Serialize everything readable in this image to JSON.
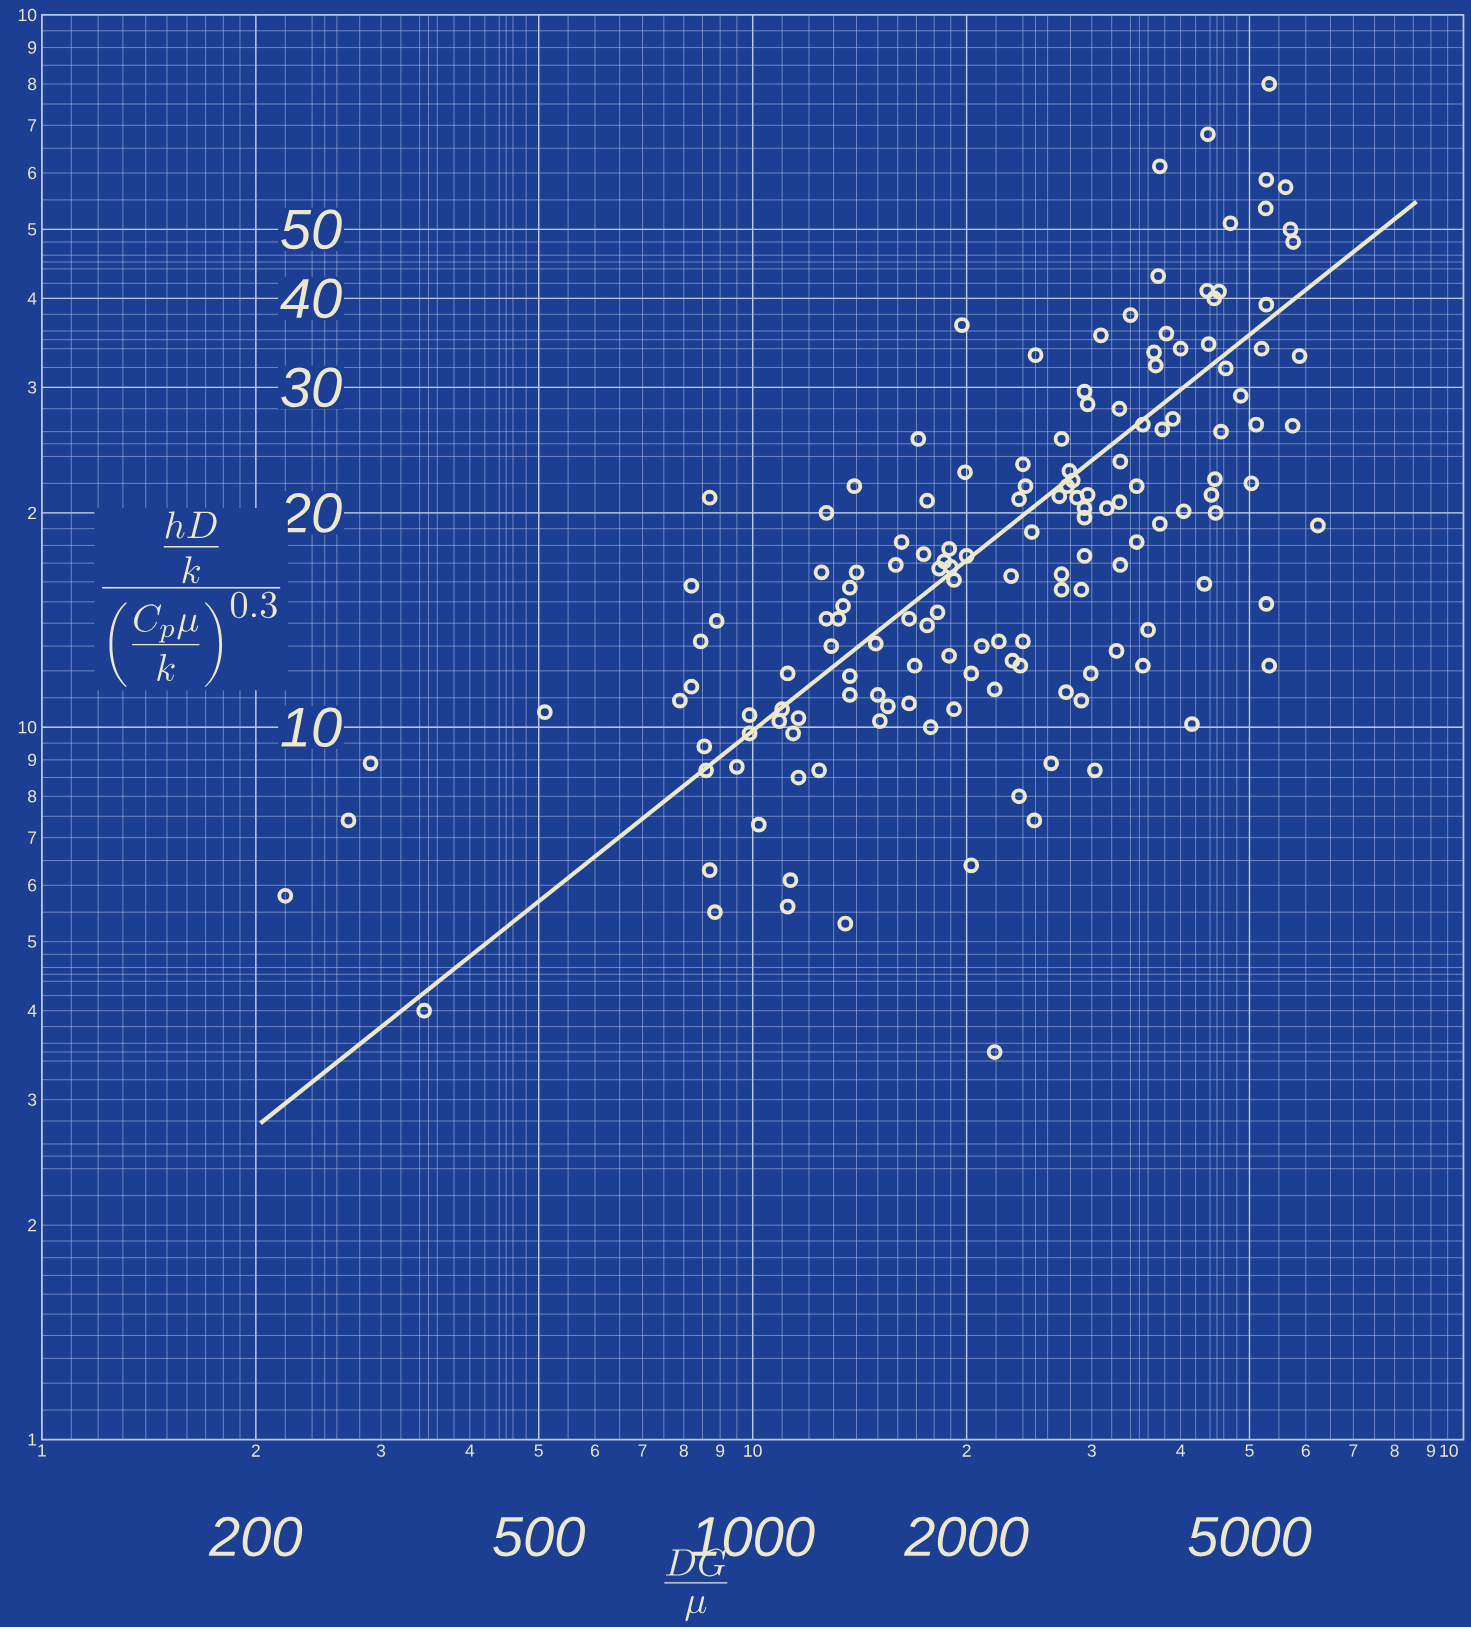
{
  "chart_data": {
    "type": "scatter",
    "xlabel": "\\frac{DG}{\\mu}",
    "ylabel": "\\frac{\\;\\frac{hD}{k}\\;}{\\left(\\frac{C_p\\mu}{k}\\right)^{0.3}}",
    "log": "xy",
    "grid": true,
    "marker": "circle",
    "xlim": [
      100,
      10000
    ],
    "ylim": [
      1,
      100
    ],
    "xticks": [
      200,
      500,
      1000,
      2000,
      5000
    ],
    "yticks": [
      10,
      20,
      30,
      40,
      50
    ],
    "annotations": [
      "1",
      "2",
      "3",
      "4",
      "5",
      "6",
      "7",
      "8",
      "9",
      "10",
      "2",
      "3",
      "4",
      "5",
      "6",
      "7",
      "8",
      "9",
      "10",
      "1",
      "2",
      "3",
      "4",
      "5",
      "6",
      "7",
      "8",
      "9",
      "10",
      "2",
      "3",
      "4",
      "5",
      "6",
      "7",
      "8",
      "9",
      "10"
    ],
    "series": [
      {
        "type": "scatter",
        "color": "#ece8cf",
        "x": [
          220,
          270,
          290,
          345,
          510,
          790,
          820,
          820,
          845,
          870,
          890,
          855,
          860,
          870,
          885,
          950,
          990,
          990,
          1020,
          1090,
          1100,
          1120,
          1140,
          1160,
          1160,
          1130,
          1120,
          1240,
          1270,
          1250,
          1270,
          1290,
          1320,
          1340,
          1370,
          1400,
          1390,
          1370,
          1370,
          1350,
          1490,
          1500,
          1510,
          1550,
          1590,
          1620,
          1660,
          1690,
          1660,
          1710,
          1740,
          1760,
          1760,
          1780,
          1820,
          1830,
          1860,
          1890,
          1890,
          1900,
          1920,
          1920,
          1970,
          1990,
          2000,
          2030,
          2030,
          2100,
          2190,
          2220,
          2190,
          2310,
          2320,
          2380,
          2370,
          2400,
          2420,
          2370,
          2400,
          2470,
          2500,
          2490,
          2630,
          2720,
          2700,
          2720,
          2720,
          2760,
          2790,
          2770,
          2820,
          2860,
          2900,
          2900,
          2930,
          2960,
          2930,
          2930,
          2930,
          2960,
          2990,
          3030,
          3090,
          3150,
          3250,
          3280,
          3280,
          3290,
          3290,
          3400,
          3470,
          3470,
          3540,
          3540,
          3600,
          3670,
          3690,
          3720,
          3740,
          3740,
          3770,
          3820,
          3900,
          4000,
          4040,
          4150,
          4320,
          4370,
          4360,
          4380,
          4420,
          4460,
          4470,
          4480,
          4530,
          4560,
          4630,
          4700,
          4860,
          5030,
          5110,
          5200,
          5270,
          5280,
          5280,
          5280,
          5330,
          5330,
          5620,
          5710,
          5750,
          5760,
          5880,
          6240
        ],
        "values": [
          5.8,
          7.4,
          8.9,
          4.0,
          10.5,
          10.9,
          11.4,
          15.8,
          13.2,
          21,
          14.1,
          9.4,
          8.7,
          6.3,
          5.5,
          8.8,
          10.4,
          9.8,
          7.3,
          10.2,
          10.6,
          11.9,
          9.8,
          10.3,
          8.5,
          6.1,
          5.6,
          8.7,
          20,
          16.5,
          14.2,
          13.0,
          14.2,
          14.8,
          15.7,
          16.5,
          21.8,
          11.8,
          11.1,
          5.3,
          13.1,
          11.1,
          10.2,
          10.7,
          16.9,
          18.2,
          14.2,
          12.2,
          10.8,
          25.4,
          17.5,
          20.8,
          13.9,
          10.0,
          14.5,
          16.7,
          17.1,
          17.8,
          12.6,
          16.8,
          16.1,
          10.6,
          36.7,
          22.8,
          17.4,
          11.9,
          6.4,
          13.0,
          11.3,
          13.2,
          3.5,
          16.3,
          12.4,
          12.2,
          8.0,
          23.4,
          21.8,
          20.9,
          13.2,
          18.8,
          33.3,
          7.4,
          8.9,
          25.4,
          21.1,
          16.4,
          15.6,
          11.2,
          22.9,
          21.8,
          22.2,
          21.0,
          15.6,
          10.9,
          29.6,
          28.4,
          20.3,
          19.7,
          17.4,
          21.2,
          11.9,
          8.7,
          35.5,
          20.3,
          12.8,
          28.0,
          20.7,
          23.6,
          16.9,
          37.9,
          21.8,
          18.2,
          26.6,
          12.2,
          13.7,
          33.6,
          32.2,
          43.0,
          61.3,
          19.3,
          26.2,
          35.7,
          27.1,
          34.0,
          20.1,
          10.1,
          15.9,
          68,
          41.0,
          34.5,
          21.2,
          40.0,
          22.3,
          20.0,
          40.9,
          26.0,
          31.9,
          51,
          29.2,
          22.0,
          26.6,
          34.0,
          53.5,
          58.7,
          39.2,
          14.9,
          80,
          12.2,
          57.3,
          50,
          26.5,
          48,
          33.2,
          19.2
        ]
      },
      {
        "type": "line",
        "color": "#ece8cf",
        "marker": "none",
        "x": [
          203,
          8590
        ],
        "values": [
          2.78,
          54.7
        ]
      }
    ]
  }
}
